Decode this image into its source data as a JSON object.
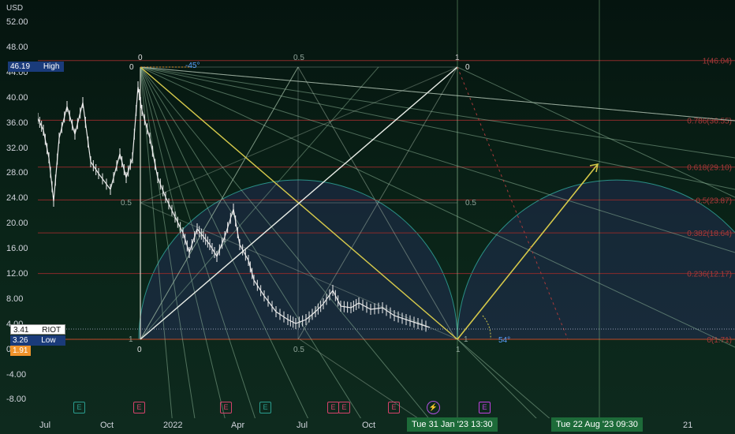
{
  "currency": "USD",
  "price_axis": [
    "52.00",
    "48.00",
    "44.00",
    "40.00",
    "36.00",
    "32.00",
    "28.00",
    "24.00",
    "20.00",
    "16.00",
    "12.00",
    "8.00",
    "4.00",
    "0.00",
    "-4.00",
    "-8.00"
  ],
  "time_axis": [
    "Jul",
    "Oct",
    "2022",
    "Apr",
    "Jul",
    "Oct",
    "21"
  ],
  "badges": {
    "high": {
      "value": "46.19",
      "label": "High"
    },
    "riot": {
      "value": "3.41",
      "label": "RIOT"
    },
    "low": {
      "value": "3.26",
      "label": "Low"
    },
    "orange": {
      "value": "1.91"
    }
  },
  "crosshair_time_1": "Tue 31 Jan '23   13:30",
  "crosshair_time_2": "Tue 22 Aug '23   09:30",
  "gann_box_labels": {
    "top_0": "0",
    "top_05": "0.5",
    "top_1": "1",
    "left_0": "0",
    "left_05": "0.5",
    "left_1": "1",
    "bottom_0": "0",
    "bottom_05": "0.5",
    "bottom_1": "1",
    "right_0": "0",
    "right_05": "0.5",
    "right_1": "1"
  },
  "angle_top": "-45°",
  "angle_bottom": "54°",
  "fib_levels": [
    "1(46.04)",
    "0.786(36.55)",
    "0.618(29.10)",
    "0.5(23.87)",
    "0.382(18.64)",
    "0.236(12.17)",
    "0(1.71)"
  ],
  "earnings_events": [
    "E",
    "E",
    "E",
    "E",
    "E",
    "E",
    "E",
    "⚡",
    "E"
  ],
  "colors": {
    "accent_green": "#1d6b39",
    "fib_red": "#b22d2d",
    "gann_yellow": "#d6c94a",
    "badge_blue": "#1a3b7a",
    "badge_orange": "#f0932b"
  }
}
